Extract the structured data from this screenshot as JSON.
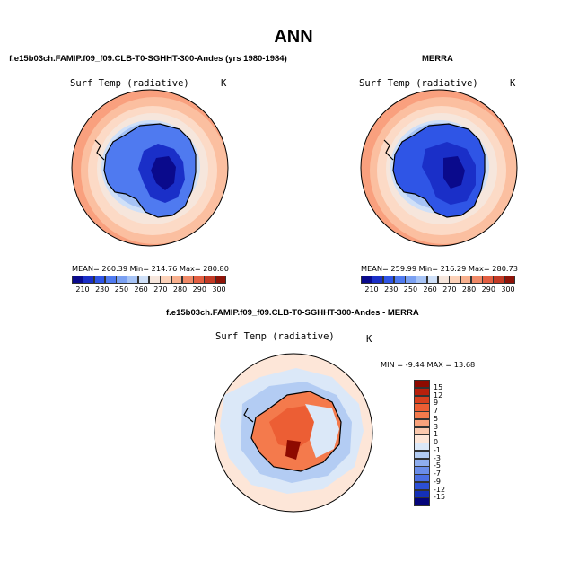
{
  "figure": {
    "title": "ANN"
  },
  "panels": [
    {
      "id": "model",
      "title": "f.e15b03ch.FAMIP.f09_f09.CLB-T0-SGHHT-300-Andes (yrs 1980-1984)",
      "variable": "Surf Temp (radiative)",
      "units": "K",
      "stats": "MEAN= 260.39   Min= 214.76   Max= 280.80"
    },
    {
      "id": "obs",
      "title": "MERRA",
      "variable": "Surf Temp (radiative)",
      "units": "K",
      "stats": "MEAN= 259.99   Min= 216.29   Max= 280.73"
    },
    {
      "id": "diff",
      "title": "f.e15b03ch.FAMIP.f09_f09.CLB-T0-SGHHT-300-Andes - MERRA",
      "variable": "Surf Temp (radiative)",
      "units": "K",
      "stats": "MIN =  -9.44 MAX =  13.68"
    }
  ],
  "colorbar_abs": {
    "colors": [
      "#0a0a8c",
      "#1a2fc8",
      "#2f55e6",
      "#4f7af0",
      "#7aa0f2",
      "#a6c3f5",
      "#cfe0f8",
      "#f6e6dc",
      "#fcd1b8",
      "#f8b08e",
      "#f08a68",
      "#e35f42",
      "#c33a25",
      "#8e1308"
    ],
    "labels": [
      "210",
      "230",
      "250",
      "260",
      "270",
      "280",
      "290",
      "300"
    ]
  },
  "colorbar_diff": {
    "colors": [
      "#8e0a00",
      "#b8200c",
      "#d8401e",
      "#ec5e34",
      "#f47a4c",
      "#f9a27c",
      "#fbc9ae",
      "#fde6d8",
      "#dbe8f8",
      "#b3ccf3",
      "#8eadee",
      "#6a8de9",
      "#4a6ee3",
      "#2c4fd6",
      "#1430b8",
      "#04047a"
    ],
    "labels": [
      "15",
      "12",
      "9",
      "7",
      "5",
      "3",
      "1",
      "0",
      "-1",
      "-3",
      "-5",
      "-7",
      "-9",
      "-12",
      "-15"
    ]
  }
}
